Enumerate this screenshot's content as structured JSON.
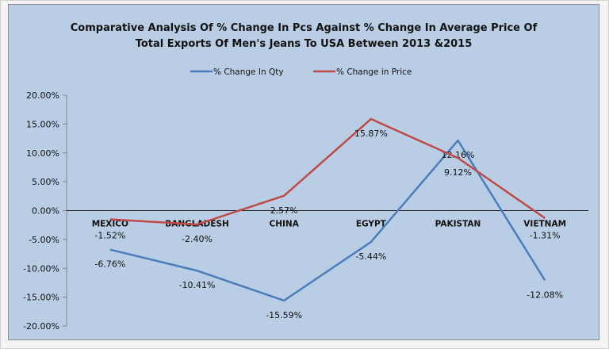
{
  "chart_data": {
    "type": "line",
    "title_lines": [
      "Comparative Analysis Of % Change In Pcs Against  % Change In Average Price Of",
      "Total Exports Of Men's Jeans To USA Between 2013 &2015"
    ],
    "categories": [
      "MEXICO",
      "BANGLADESH",
      "CHINA",
      "EGYPT",
      "PAKISTAN",
      "VIETNAM"
    ],
    "series": [
      {
        "name": "% Change In Qty",
        "color": "#4a7ebb",
        "values": [
          -6.76,
          -10.41,
          -15.59,
          -5.44,
          12.16,
          -12.08
        ],
        "labels": [
          "-6.76%",
          "-10.41%",
          "-15.59%",
          "-5.44%",
          "12.16%",
          "-12.08%"
        ]
      },
      {
        "name": "% Change in Price",
        "color": "#be4b48",
        "values": [
          -1.52,
          -2.4,
          2.57,
          15.87,
          9.12,
          -1.31
        ],
        "labels": [
          "-1.52%",
          "-2.40%",
          "2.57%",
          "15.87%",
          "9.12%",
          "-1.31%"
        ]
      }
    ],
    "ylim": [
      -20,
      20
    ],
    "yticks": [
      20,
      15,
      10,
      5,
      0,
      -5,
      -10,
      -15,
      -20
    ],
    "ytick_labels": [
      "20.00%",
      "15.00%",
      "10.00%",
      "5.00%",
      "0.00%",
      "-5.00%",
      "-10.00%",
      "-15.00%",
      "-20.00%"
    ],
    "legend_position": "top",
    "grid": false
  }
}
